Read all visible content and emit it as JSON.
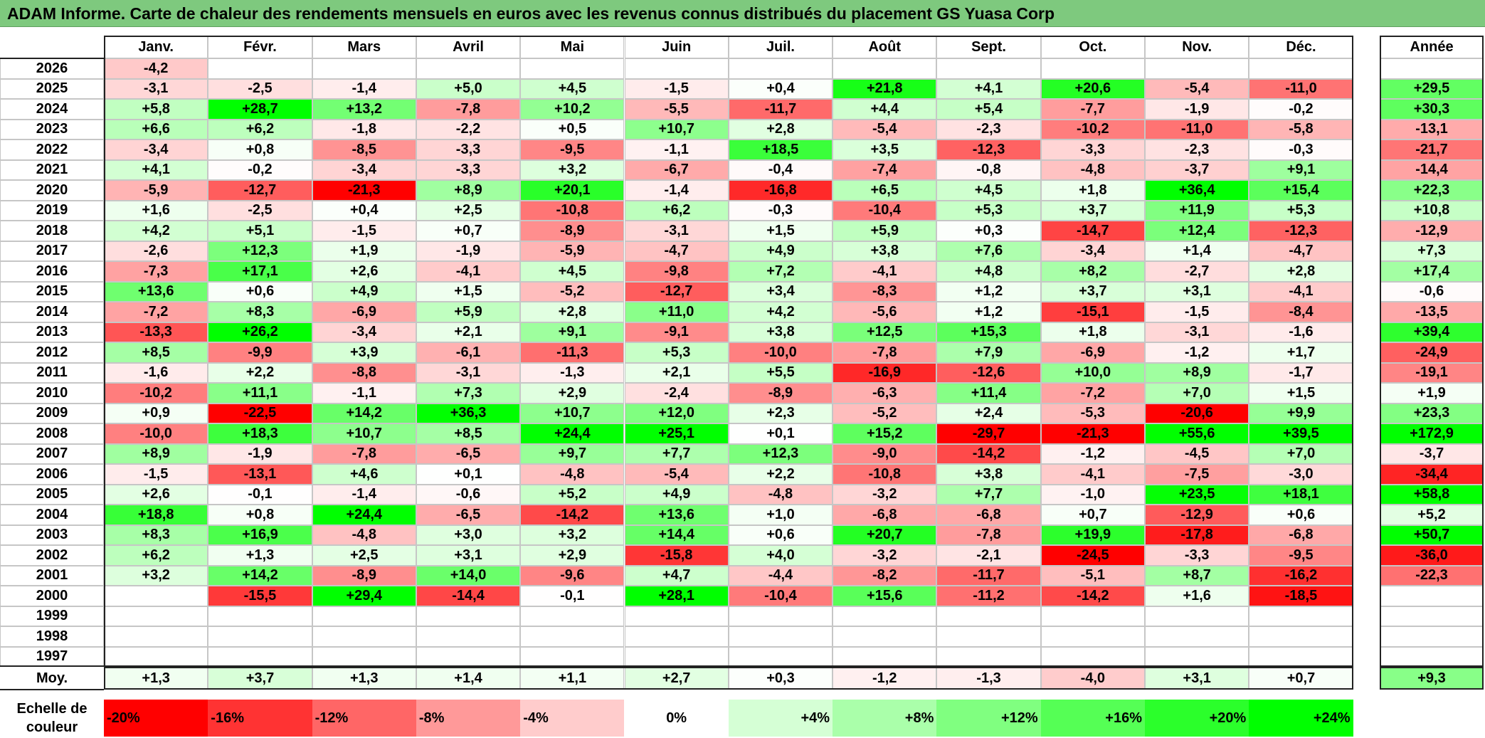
{
  "title": "ADAM Informe. Carte de chaleur des rendements mensuels en euros avec les revenus connus distribués du placement GS Yuasa Corp",
  "chart_data": {
    "type": "heatmap",
    "months": [
      "Janv.",
      "Févr.",
      "Mars",
      "Avril",
      "Mai",
      "Juin",
      "Juil.",
      "Août",
      "Sept.",
      "Oct.",
      "Nov.",
      "Déc."
    ],
    "annual_label": "Année",
    "rows": [
      {
        "year": "2026",
        "values": [
          "-4,2",
          "",
          "",
          "",
          "",
          "",
          "",
          "",
          "",
          "",
          "",
          ""
        ],
        "annual": ""
      },
      {
        "year": "2025",
        "values": [
          "-3,1",
          "-2,5",
          "-1,4",
          "+5,0",
          "+4,5",
          "-1,5",
          "+0,4",
          "+21,8",
          "+4,1",
          "+20,6",
          "-5,4",
          "-11,0"
        ],
        "annual": "+29,5"
      },
      {
        "year": "2024",
        "values": [
          "+5,8",
          "+28,7",
          "+13,2",
          "-7,8",
          "+10,2",
          "-5,5",
          "-11,7",
          "+4,4",
          "+5,4",
          "-7,7",
          "-1,9",
          "-0,2"
        ],
        "annual": "+30,3"
      },
      {
        "year": "2023",
        "values": [
          "+6,6",
          "+6,2",
          "-1,8",
          "-2,2",
          "+0,5",
          "+10,7",
          "+2,8",
          "-5,4",
          "-2,3",
          "-10,2",
          "-11,0",
          "-5,8"
        ],
        "annual": "-13,1"
      },
      {
        "year": "2022",
        "values": [
          "-3,4",
          "+0,8",
          "-8,5",
          "-3,3",
          "-9,5",
          "-1,1",
          "+18,5",
          "+3,5",
          "-12,3",
          "-3,3",
          "-2,3",
          "-0,3"
        ],
        "annual": "-21,7"
      },
      {
        "year": "2021",
        "values": [
          "+4,1",
          "-0,2",
          "-3,4",
          "-3,3",
          "+3,2",
          "-6,7",
          "-0,4",
          "-7,4",
          "-0,8",
          "-4,8",
          "-3,7",
          "+9,1"
        ],
        "annual": "-14,4"
      },
      {
        "year": "2020",
        "values": [
          "-5,9",
          "-12,7",
          "-21,3",
          "+8,9",
          "+20,1",
          "-1,4",
          "-16,8",
          "+6,5",
          "+4,5",
          "+1,8",
          "+36,4",
          "+15,4"
        ],
        "annual": "+22,3"
      },
      {
        "year": "2019",
        "values": [
          "+1,6",
          "-2,5",
          "+0,4",
          "+2,5",
          "-10,8",
          "+6,2",
          "-0,3",
          "-10,4",
          "+5,3",
          "+3,7",
          "+11,9",
          "+5,3"
        ],
        "annual": "+10,8"
      },
      {
        "year": "2018",
        "values": [
          "+4,2",
          "+5,1",
          "-1,5",
          "+0,7",
          "-8,9",
          "-3,1",
          "+1,5",
          "+5,9",
          "+0,3",
          "-14,7",
          "+12,4",
          "-12,3"
        ],
        "annual": "-12,9"
      },
      {
        "year": "2017",
        "values": [
          "-2,6",
          "+12,3",
          "+1,9",
          "-1,9",
          "-5,9",
          "-4,7",
          "+4,9",
          "+3,8",
          "+7,6",
          "-3,4",
          "+1,4",
          "-4,7"
        ],
        "annual": "+7,3"
      },
      {
        "year": "2016",
        "values": [
          "-7,3",
          "+17,1",
          "+2,6",
          "-4,1",
          "+4,5",
          "-9,8",
          "+7,2",
          "-4,1",
          "+4,8",
          "+8,2",
          "-2,7",
          "+2,8"
        ],
        "annual": "+17,4"
      },
      {
        "year": "2015",
        "values": [
          "+13,6",
          "+0,6",
          "+4,9",
          "+1,5",
          "-5,2",
          "-12,7",
          "+3,4",
          "-8,3",
          "+1,2",
          "+3,7",
          "+3,1",
          "-4,1"
        ],
        "annual": "-0,6"
      },
      {
        "year": "2014",
        "values": [
          "-7,2",
          "+8,3",
          "-6,9",
          "+5,9",
          "+2,8",
          "+11,0",
          "+4,2",
          "-5,6",
          "+1,2",
          "-15,1",
          "-1,5",
          "-8,4"
        ],
        "annual": "-13,5"
      },
      {
        "year": "2013",
        "values": [
          "-13,3",
          "+26,2",
          "-3,4",
          "+2,1",
          "+9,1",
          "-9,1",
          "+3,8",
          "+12,5",
          "+15,3",
          "+1,8",
          "-3,1",
          "-1,6"
        ],
        "annual": "+39,4"
      },
      {
        "year": "2012",
        "values": [
          "+8,5",
          "-9,9",
          "+3,9",
          "-6,1",
          "-11,3",
          "+5,3",
          "-10,0",
          "-7,8",
          "+7,9",
          "-6,9",
          "-1,2",
          "+1,7"
        ],
        "annual": "-24,9"
      },
      {
        "year": "2011",
        "values": [
          "-1,6",
          "+2,2",
          "-8,8",
          "-3,1",
          "-1,3",
          "+2,1",
          "+5,5",
          "-16,9",
          "-12,6",
          "+10,0",
          "+8,9",
          "-1,7"
        ],
        "annual": "-19,1"
      },
      {
        "year": "2010",
        "values": [
          "-10,2",
          "+11,1",
          "-1,1",
          "+7,3",
          "+2,9",
          "-2,4",
          "-8,9",
          "-6,3",
          "+11,4",
          "-7,2",
          "+7,0",
          "+1,5"
        ],
        "annual": "+1,9"
      },
      {
        "year": "2009",
        "values": [
          "+0,9",
          "-22,5",
          "+14,2",
          "+36,3",
          "+10,7",
          "+12,0",
          "+2,3",
          "-5,2",
          "+2,4",
          "-5,3",
          "-20,6",
          "+9,9"
        ],
        "annual": "+23,3"
      },
      {
        "year": "2008",
        "values": [
          "-10,0",
          "+18,3",
          "+10,7",
          "+8,5",
          "+24,4",
          "+25,1",
          "+0,1",
          "+15,2",
          "-29,7",
          "-21,3",
          "+55,6",
          "+39,5"
        ],
        "annual": "+172,9"
      },
      {
        "year": "2007",
        "values": [
          "+8,9",
          "-1,9",
          "-7,8",
          "-6,5",
          "+9,7",
          "+7,7",
          "+12,3",
          "-9,0",
          "-14,2",
          "-1,2",
          "-4,5",
          "+7,0"
        ],
        "annual": "-3,7"
      },
      {
        "year": "2006",
        "values": [
          "-1,5",
          "-13,1",
          "+4,6",
          "+0,1",
          "-4,8",
          "-5,4",
          "+2,2",
          "-10,8",
          "+3,8",
          "-4,1",
          "-7,5",
          "-3,0"
        ],
        "annual": "-34,4"
      },
      {
        "year": "2005",
        "values": [
          "+2,6",
          "-0,1",
          "-1,4",
          "-0,6",
          "+5,2",
          "+4,9",
          "-4,8",
          "-3,2",
          "+7,7",
          "-1,0",
          "+23,5",
          "+18,1"
        ],
        "annual": "+58,8"
      },
      {
        "year": "2004",
        "values": [
          "+18,8",
          "+0,8",
          "+24,4",
          "-6,5",
          "-14,2",
          "+13,6",
          "+1,0",
          "-6,8",
          "-6,8",
          "+0,7",
          "-12,9",
          "+0,6"
        ],
        "annual": "+5,2"
      },
      {
        "year": "2003",
        "values": [
          "+8,3",
          "+16,9",
          "-4,8",
          "+3,0",
          "+3,2",
          "+14,4",
          "+0,6",
          "+20,7",
          "-7,8",
          "+19,9",
          "-17,8",
          "-6,8"
        ],
        "annual": "+50,7"
      },
      {
        "year": "2002",
        "values": [
          "+6,2",
          "+1,3",
          "+2,5",
          "+3,1",
          "+2,9",
          "-15,8",
          "+4,0",
          "-3,2",
          "-2,1",
          "-24,5",
          "-3,3",
          "-9,5"
        ],
        "annual": "-36,0"
      },
      {
        "year": "2001",
        "values": [
          "+3,2",
          "+14,2",
          "-8,9",
          "+14,0",
          "-9,6",
          "+4,7",
          "-4,4",
          "-8,2",
          "-11,7",
          "-5,1",
          "+8,7",
          "-16,2"
        ],
        "annual": "-22,3"
      },
      {
        "year": "2000",
        "values": [
          "",
          "-15,5",
          "+29,4",
          "-14,4",
          "-0,1",
          "+28,1",
          "-10,4",
          "+15,6",
          "-11,2",
          "-14,2",
          "+1,6",
          "-18,5"
        ],
        "annual": ""
      },
      {
        "year": "1999",
        "values": [
          "",
          "",
          "",
          "",
          "",
          "",
          "",
          "",
          "",
          "",
          "",
          ""
        ],
        "annual": ""
      },
      {
        "year": "1998",
        "values": [
          "",
          "",
          "",
          "",
          "",
          "",
          "",
          "",
          "",
          "",
          "",
          ""
        ],
        "annual": ""
      },
      {
        "year": "1997",
        "values": [
          "",
          "",
          "",
          "",
          "",
          "",
          "",
          "",
          "",
          "",
          "",
          ""
        ],
        "annual": ""
      }
    ],
    "average": {
      "label": "Moy.",
      "values": [
        "+1,3",
        "+3,7",
        "+1,3",
        "+1,4",
        "+1,1",
        "+2,7",
        "+0,3",
        "-1,2",
        "-1,3",
        "-4,0",
        "+3,1",
        "+0,7"
      ],
      "annual": "+9,3"
    },
    "color_scale": {
      "label_line1": "Echelle de",
      "label_line2": "couleur",
      "steps": [
        "-20%",
        "-16%",
        "-12%",
        "-8%",
        "-4%",
        "0%",
        "+4%",
        "+8%",
        "+12%",
        "+16%",
        "+20%",
        "+24%"
      ],
      "step_values": [
        -20,
        -16,
        -12,
        -8,
        -4,
        0,
        4,
        8,
        12,
        16,
        20,
        24
      ]
    }
  }
}
